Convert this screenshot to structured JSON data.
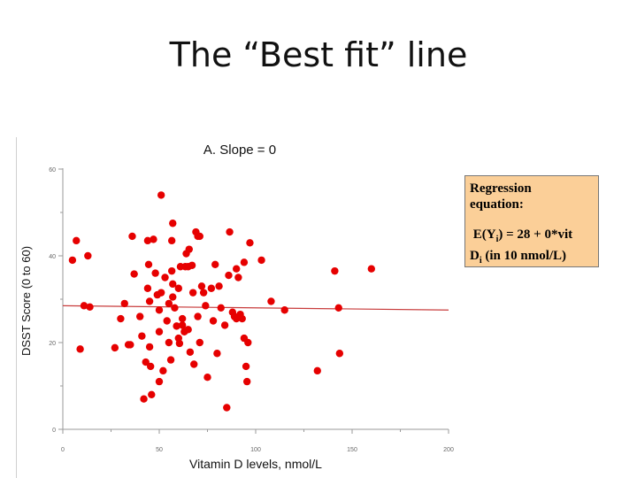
{
  "slide": {
    "title": "The “Best fit” line"
  },
  "callout": {
    "heading_line1": "Regression",
    "heading_line2": "equation:",
    "eq_prefix": "E(Y",
    "eq_sub1": "i",
    "eq_mid": ") = 28 + 0*vit",
    "eq_line2_prefix": "D",
    "eq_sub2": "i",
    "eq_line2_rest": " (in 10 nmol/L)",
    "color": "#fbcf98"
  },
  "chart_data": {
    "type": "scatter",
    "title": "A. Slope = 0",
    "xlabel": "Vitamin D levels, nmol/L",
    "ylabel": "DSST Score (0 to 60)",
    "xlim": [
      0,
      200
    ],
    "ylim": [
      0,
      60
    ],
    "x_ticks": [
      0,
      50,
      100,
      150,
      200
    ],
    "y_ticks": [
      0,
      20,
      40,
      60
    ],
    "x_tick_labels": [
      "0",
      "50",
      "100",
      "150",
      "200"
    ],
    "y_tick_labels": [
      "0",
      "20",
      "40",
      "60"
    ],
    "grid": false,
    "point_color": "#e60000",
    "line_color": "#c83c3c",
    "regression_line": {
      "x": [
        0,
        200
      ],
      "y": [
        28.5,
        27.5
      ]
    },
    "points": [
      {
        "x": 5,
        "y": 39
      },
      {
        "x": 7,
        "y": 43.5
      },
      {
        "x": 9,
        "y": 18.5
      },
      {
        "x": 11,
        "y": 28.5
      },
      {
        "x": 13,
        "y": 40
      },
      {
        "x": 14,
        "y": 28.2
      },
      {
        "x": 27,
        "y": 18.8
      },
      {
        "x": 30,
        "y": 25.5
      },
      {
        "x": 32,
        "y": 29
      },
      {
        "x": 34,
        "y": 19.5
      },
      {
        "x": 35,
        "y": 19.5
      },
      {
        "x": 36,
        "y": 44.5
      },
      {
        "x": 37,
        "y": 35.8
      },
      {
        "x": 40,
        "y": 26
      },
      {
        "x": 41,
        "y": 21.5
      },
      {
        "x": 42,
        "y": 7
      },
      {
        "x": 43,
        "y": 15.5
      },
      {
        "x": 44,
        "y": 32.5
      },
      {
        "x": 44,
        "y": 43.5
      },
      {
        "x": 44.5,
        "y": 38
      },
      {
        "x": 45,
        "y": 29.5
      },
      {
        "x": 45,
        "y": 19
      },
      {
        "x": 45.5,
        "y": 14.5
      },
      {
        "x": 46,
        "y": 8
      },
      {
        "x": 47,
        "y": 43.8
      },
      {
        "x": 48,
        "y": 36
      },
      {
        "x": 49,
        "y": 31
      },
      {
        "x": 50,
        "y": 27.5
      },
      {
        "x": 50,
        "y": 22.5
      },
      {
        "x": 50,
        "y": 11
      },
      {
        "x": 51,
        "y": 31.5
      },
      {
        "x": 51,
        "y": 54
      },
      {
        "x": 52,
        "y": 13.5
      },
      {
        "x": 53,
        "y": 35
      },
      {
        "x": 54,
        "y": 25
      },
      {
        "x": 55,
        "y": 20
      },
      {
        "x": 55,
        "y": 29
      },
      {
        "x": 56,
        "y": 16
      },
      {
        "x": 56.5,
        "y": 36.5
      },
      {
        "x": 56.5,
        "y": 43.5
      },
      {
        "x": 57,
        "y": 30.5
      },
      {
        "x": 57,
        "y": 47.5
      },
      {
        "x": 57,
        "y": 33.5
      },
      {
        "x": 58,
        "y": 28
      },
      {
        "x": 59,
        "y": 23.8
      },
      {
        "x": 60,
        "y": 21
      },
      {
        "x": 60,
        "y": 32.5
      },
      {
        "x": 60.5,
        "y": 19.8
      },
      {
        "x": 61,
        "y": 37.5
      },
      {
        "x": 62,
        "y": 24
      },
      {
        "x": 62,
        "y": 25.5
      },
      {
        "x": 63,
        "y": 22.5
      },
      {
        "x": 63.5,
        "y": 37.5
      },
      {
        "x": 64,
        "y": 40.5
      },
      {
        "x": 65,
        "y": 23
      },
      {
        "x": 65,
        "y": 37.5
      },
      {
        "x": 65.5,
        "y": 41.5
      },
      {
        "x": 66,
        "y": 17.8
      },
      {
        "x": 67,
        "y": 37.8
      },
      {
        "x": 67.5,
        "y": 31.5
      },
      {
        "x": 68,
        "y": 15
      },
      {
        "x": 69,
        "y": 45.5
      },
      {
        "x": 70,
        "y": 44.5
      },
      {
        "x": 70,
        "y": 26
      },
      {
        "x": 71,
        "y": 44.5
      },
      {
        "x": 71,
        "y": 20
      },
      {
        "x": 72,
        "y": 33
      },
      {
        "x": 73,
        "y": 31.5
      },
      {
        "x": 74,
        "y": 28.5
      },
      {
        "x": 75,
        "y": 12
      },
      {
        "x": 77,
        "y": 32.5
      },
      {
        "x": 78,
        "y": 25
      },
      {
        "x": 79,
        "y": 38
      },
      {
        "x": 80,
        "y": 17.5
      },
      {
        "x": 81,
        "y": 33
      },
      {
        "x": 82,
        "y": 28
      },
      {
        "x": 84,
        "y": 24
      },
      {
        "x": 85,
        "y": 5
      },
      {
        "x": 86,
        "y": 35.5
      },
      {
        "x": 86.5,
        "y": 45.5
      },
      {
        "x": 88,
        "y": 27
      },
      {
        "x": 89,
        "y": 26
      },
      {
        "x": 90,
        "y": 37
      },
      {
        "x": 90,
        "y": 25.5
      },
      {
        "x": 91,
        "y": 35
      },
      {
        "x": 92,
        "y": 26.5
      },
      {
        "x": 93,
        "y": 25.5
      },
      {
        "x": 94,
        "y": 21
      },
      {
        "x": 94,
        "y": 38.5
      },
      {
        "x": 95,
        "y": 14.5
      },
      {
        "x": 95.5,
        "y": 11
      },
      {
        "x": 96,
        "y": 20
      },
      {
        "x": 97,
        "y": 43
      },
      {
        "x": 103,
        "y": 39
      },
      {
        "x": 108,
        "y": 29.5
      },
      {
        "x": 115,
        "y": 27.5
      },
      {
        "x": 132,
        "y": 13.5
      },
      {
        "x": 141,
        "y": 36.5
      },
      {
        "x": 143,
        "y": 28
      },
      {
        "x": 143.5,
        "y": 17.5
      },
      {
        "x": 160,
        "y": 37
      }
    ]
  }
}
